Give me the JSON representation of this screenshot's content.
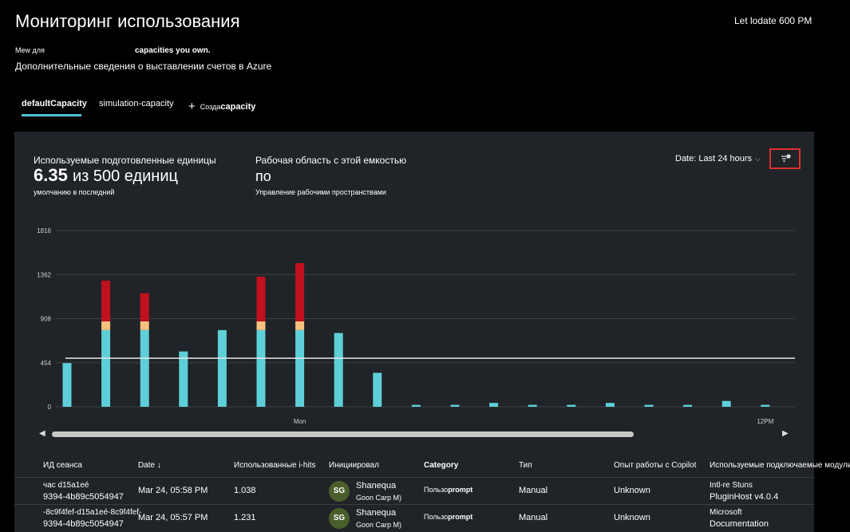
{
  "header": {
    "title": "Мониторинг использования",
    "last_update": "Let lodate 600 PM",
    "desc_prefix": "Мew для",
    "desc_bold": "capacities you own.",
    "billing_link": "Дополнительные сведения о выставлении счетов в Azure"
  },
  "tabs": [
    {
      "label": "defaultCapacity",
      "active": true
    },
    {
      "label": "simulation-capacity"
    },
    {
      "label_small": "Созда",
      "label_bold": "capacity",
      "icon": "plus-icon"
    }
  ],
  "kpi": {
    "units_label": "Используемые подготовленные единицы",
    "units_value": "6.35",
    "units_of": "из 500 единиц",
    "units_sub": "умолчанию в последний",
    "ws_label": "Рабочая область с этой емкостью",
    "ws_value": "по",
    "ws_sub": "Управление рабочими пространствами"
  },
  "date_filter": "Date: Last 24 hours",
  "chart_data": {
    "type": "bar",
    "y_ticks": [
      "1816",
      "1362",
      "908",
      "454",
      "0"
    ],
    "ylim": [
      0,
      1816
    ],
    "x_tick_labels": [
      {
        "index": 6,
        "label": "Mon"
      },
      {
        "index": 18,
        "label": "12PM"
      }
    ],
    "threshold": 500,
    "series": [
      {
        "color": "#5ecfd8",
        "values": [
          450,
          790,
          790,
          570,
          790,
          790,
          790,
          760,
          350,
          20,
          20,
          40,
          20,
          20,
          40,
          20,
          20,
          60,
          20
        ]
      },
      {
        "color": "#f7c17f",
        "values": [
          0,
          90,
          90,
          0,
          0,
          90,
          90,
          0,
          0,
          0,
          0,
          0,
          0,
          0,
          0,
          0,
          0,
          0,
          0
        ]
      },
      {
        "color": "#c0121e",
        "values": [
          0,
          420,
          290,
          0,
          0,
          460,
          600,
          0,
          0,
          0,
          0,
          0,
          0,
          0,
          0,
          0,
          0,
          0,
          0
        ]
      }
    ]
  },
  "table": {
    "columns": [
      "ИД сеанса",
      "Date",
      "Использованные i-hits",
      "Инициировал",
      "Category",
      "Тип",
      "Опыт работы с Copilot",
      "Используемые подключаемые модули"
    ],
    "rows": [
      {
        "session_1": "час d15a1eé",
        "session_2": "9394-4b89c5054947",
        "date": "Mar 24, 05:58 PM",
        "hits": "1.038",
        "initials": "SG",
        "name": "Shanequa",
        "org": "Goon Carp M)",
        "category_small": "Пользо",
        "category_bold": "prompt",
        "type": "Manual",
        "copilot": "Unknown",
        "plugin_1": "Intl-re Stuns",
        "plugin_2": "PluginHost v4.0.4"
      },
      {
        "session_1": "-8c9f4fef-d15a1eé-8c9f4fef-",
        "session_2": "9394-4b89c5054947",
        "date": "Mar 24, 05:57 PM",
        "hits": "1.231",
        "initials": "SG",
        "name": "Shanequa",
        "org": "Goon Carp M)",
        "category_small": "Пользо",
        "category_bold": "prompt",
        "type": "Manual",
        "copilot": "Unknown",
        "plugin_1": "Microsoft",
        "plugin_2": "Documentation"
      }
    ]
  },
  "icons": {
    "filter": "filter-settings-icon",
    "sort": "sort-down-icon",
    "chevron": "chevron-down-icon"
  }
}
